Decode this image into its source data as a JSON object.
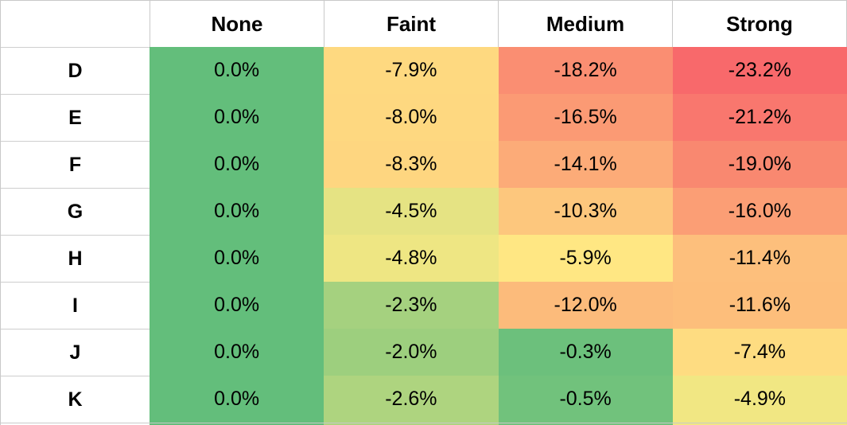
{
  "table": {
    "corner_label": "",
    "columns": [
      "None",
      "Faint",
      "Medium",
      "Strong"
    ],
    "rows": [
      {
        "label": "D",
        "cells": [
          {
            "text": "0.0%",
            "bg": "#63BE7B"
          },
          {
            "text": "-7.9%",
            "bg": "#FED980"
          },
          {
            "text": "-18.2%",
            "bg": "#FA8E72"
          },
          {
            "text": "-23.2%",
            "bg": "#F8696B"
          }
        ]
      },
      {
        "label": "E",
        "cells": [
          {
            "text": "0.0%",
            "bg": "#63BE7B"
          },
          {
            "text": "-8.0%",
            "bg": "#FED880"
          },
          {
            "text": "-16.5%",
            "bg": "#FB9A74"
          },
          {
            "text": "-21.2%",
            "bg": "#F9776E"
          }
        ]
      },
      {
        "label": "F",
        "cells": [
          {
            "text": "0.0%",
            "bg": "#63BE7B"
          },
          {
            "text": "-8.3%",
            "bg": "#FED680"
          },
          {
            "text": "-14.1%",
            "bg": "#FCAB78"
          },
          {
            "text": "-19.0%",
            "bg": "#F98870"
          }
        ]
      },
      {
        "label": "G",
        "cells": [
          {
            "text": "0.0%",
            "bg": "#63BE7B"
          },
          {
            "text": "-4.5%",
            "bg": "#E5E383"
          },
          {
            "text": "-10.3%",
            "bg": "#FDC77D"
          },
          {
            "text": "-16.0%",
            "bg": "#FB9E75"
          }
        ]
      },
      {
        "label": "H",
        "cells": [
          {
            "text": "0.0%",
            "bg": "#63BE7B"
          },
          {
            "text": "-4.8%",
            "bg": "#EEE683"
          },
          {
            "text": "-5.9%",
            "bg": "#FFE783"
          },
          {
            "text": "-11.4%",
            "bg": "#FDBF7C"
          }
        ]
      },
      {
        "label": "I",
        "cells": [
          {
            "text": "0.0%",
            "bg": "#63BE7B"
          },
          {
            "text": "-2.3%",
            "bg": "#A5D17F"
          },
          {
            "text": "-12.0%",
            "bg": "#FCBB7B"
          },
          {
            "text": "-11.6%",
            "bg": "#FDBE7B"
          }
        ]
      },
      {
        "label": "J",
        "cells": [
          {
            "text": "0.0%",
            "bg": "#63BE7B"
          },
          {
            "text": "-2.0%",
            "bg": "#9DCF7E"
          },
          {
            "text": "-0.3%",
            "bg": "#6CC07C"
          },
          {
            "text": "-7.4%",
            "bg": "#FEDC81"
          }
        ]
      },
      {
        "label": "K",
        "cells": [
          {
            "text": "0.0%",
            "bg": "#63BE7B"
          },
          {
            "text": "-2.6%",
            "bg": "#AED47F"
          },
          {
            "text": "-0.5%",
            "bg": "#71C27C"
          },
          {
            "text": "-4.9%",
            "bg": "#F1E783"
          }
        ]
      }
    ]
  },
  "chart_data": {
    "type": "heatmap",
    "title": "",
    "columns": [
      "None",
      "Faint",
      "Medium",
      "Strong"
    ],
    "row_labels": [
      "D",
      "E",
      "F",
      "G",
      "H",
      "I",
      "J",
      "K"
    ],
    "values_percent": [
      [
        0.0,
        -7.9,
        -18.2,
        -23.2
      ],
      [
        0.0,
        -8.0,
        -16.5,
        -21.2
      ],
      [
        0.0,
        -8.3,
        -14.1,
        -19.0
      ],
      [
        0.0,
        -4.5,
        -10.3,
        -16.0
      ],
      [
        0.0,
        -4.8,
        -5.9,
        -11.4
      ],
      [
        0.0,
        -2.3,
        -12.0,
        -11.6
      ],
      [
        0.0,
        -2.0,
        -0.3,
        -7.4
      ],
      [
        0.0,
        -2.6,
        -0.5,
        -4.9
      ]
    ],
    "cell_labels": [
      [
        "0.0%",
        "-7.9%",
        "-18.2%",
        "-23.2%"
      ],
      [
        "0.0%",
        "-8.0%",
        "-16.5%",
        "-21.2%"
      ],
      [
        "0.0%",
        "-8.3%",
        "-14.1%",
        "-19.0%"
      ],
      [
        "0.0%",
        "-4.5%",
        "-10.3%",
        "-16.0%"
      ],
      [
        "0.0%",
        "-4.8%",
        "-5.9%",
        "-11.4%"
      ],
      [
        "0.0%",
        "-2.3%",
        "-12.0%",
        "-11.6%"
      ],
      [
        "0.0%",
        "-2.0%",
        "-0.3%",
        "-7.4%"
      ],
      [
        "0.0%",
        "-2.6%",
        "-0.5%",
        "-4.9%"
      ]
    ],
    "color_scale": {
      "style": "excel-3-color-scale",
      "min_value": -23.2,
      "min_color": "#F8696B",
      "mid_value": -5.4,
      "mid_color": "#FFEB84",
      "max_value": 0.0,
      "max_color": "#63BE7B"
    },
    "legend_position": "none",
    "grid": "light-gray gridlines visible only in white header row and row-label column"
  },
  "styles": {
    "gridline_color": "#C9C9C9",
    "text_color": "#000000",
    "background_color": "#FFFFFF"
  }
}
